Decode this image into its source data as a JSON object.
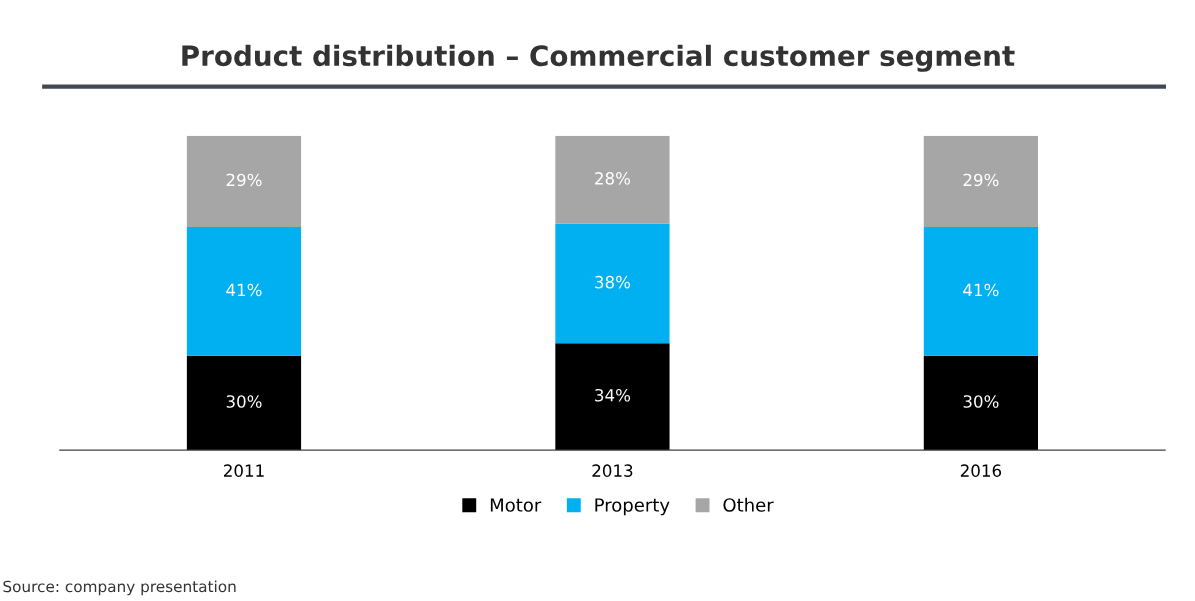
{
  "chart_data": {
    "type": "bar",
    "title": "Product distribution – Commercial customer segment",
    "categories": [
      "2011",
      "2013",
      "2016"
    ],
    "series": [
      {
        "name": "Motor",
        "color": "#000000",
        "values": [
          30,
          34,
          30
        ],
        "value_labels": [
          "30%",
          "34%",
          "30%"
        ]
      },
      {
        "name": "Property",
        "color": "#00b0f0",
        "values": [
          41,
          38,
          41
        ],
        "value_labels": [
          "41%",
          "38%",
          "41%"
        ]
      },
      {
        "name": "Other",
        "color": "#a6a6a6",
        "values": [
          29,
          28,
          29
        ],
        "value_labels": [
          "29%",
          "28%",
          "29%"
        ]
      }
    ],
    "stacked": true,
    "grid": false,
    "legend": "bottom",
    "annotations": [
      "Source: company presentation"
    ]
  }
}
